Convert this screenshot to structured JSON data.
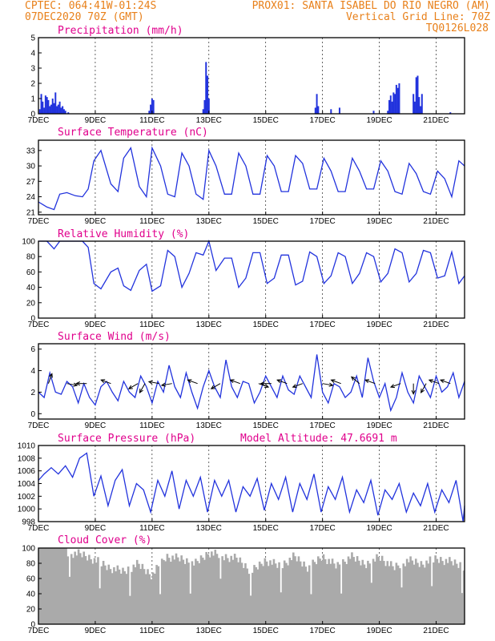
{
  "header": {
    "left_line1": "CPTEC:   064:41W-01:24S",
    "right_line1": "PROX01: SANTA ISABEL DO RIO NEGRO (AM)",
    "left_line2": "07DEC2020 70Z (GMT)",
    "right_line2": "Vertical Grid Line: 70Z",
    "right_line3": "TQ0126L028"
  },
  "colors": {
    "header": "#e8801a",
    "title": "#e0008c",
    "series": "#2233dd",
    "cloud": "#aaaaaa",
    "arrow": "#000000"
  },
  "chart_data": [
    {
      "type": "bar",
      "title": "Precipitation (mm/h)",
      "x_range_days": [
        7,
        22
      ],
      "ylim": [
        0,
        5
      ],
      "y_ticks": [
        0,
        1,
        2,
        3,
        4,
        5
      ],
      "x_tick_labels": [
        "7DEC",
        "9DEC",
        "11DEC",
        "13DEC",
        "15DEC",
        "17DEC",
        "19DEC",
        "21DEC"
      ],
      "x_tick_days": [
        7,
        9,
        11,
        13,
        15,
        17,
        19,
        21
      ],
      "x": [
        7.05,
        7.1,
        7.15,
        7.2,
        7.25,
        7.3,
        7.35,
        7.4,
        7.45,
        7.5,
        7.55,
        7.6,
        7.65,
        7.7,
        7.75,
        7.8,
        7.85,
        7.9,
        7.95,
        8.05,
        10.9,
        10.95,
        11.0,
        11.05,
        12.8,
        12.85,
        12.9,
        12.95,
        13.0,
        16.75,
        16.8,
        16.85,
        17.3,
        17.6,
        18.8,
        19.3,
        19.35,
        19.4,
        19.45,
        19.5,
        19.55,
        19.6,
        19.65,
        19.7,
        20.2,
        20.25,
        20.3,
        20.35,
        20.4,
        20.45,
        20.5,
        21.5
      ],
      "values": [
        0.3,
        1.3,
        0.8,
        0.4,
        1.2,
        1.1,
        0.9,
        0.5,
        0.6,
        1.0,
        0.7,
        1.4,
        0.5,
        0.6,
        0.8,
        0.4,
        0.5,
        0.3,
        0.2,
        0.1,
        0.2,
        0.6,
        1.0,
        0.9,
        0.3,
        0.9,
        3.4,
        2.5,
        1.0,
        0.4,
        1.3,
        0.5,
        0.3,
        0.4,
        0.2,
        0.2,
        0.9,
        1.2,
        0.8,
        1.4,
        1.3,
        1.9,
        1.7,
        2.0,
        1.3,
        0.8,
        2.4,
        2.5,
        1.1,
        0.5,
        1.3,
        0.1
      ]
    },
    {
      "type": "line",
      "title": "Surface Temperature (nC)",
      "x_range_days": [
        7,
        22
      ],
      "ylim": [
        20.5,
        35
      ],
      "y_ticks": [
        21,
        24,
        27,
        30,
        33
      ],
      "x_tick_labels": [
        "7DEC",
        "9DEC",
        "11DEC",
        "13DEC",
        "15DEC",
        "17DEC",
        "19DEC",
        "21DEC"
      ],
      "x_tick_days": [
        7,
        9,
        11,
        13,
        15,
        17,
        19,
        21
      ],
      "x": [
        7.0,
        7.3,
        7.55,
        7.75,
        8.0,
        8.3,
        8.55,
        8.75,
        8.95,
        9.2,
        9.55,
        9.8,
        10.0,
        10.25,
        10.55,
        10.8,
        11.0,
        11.3,
        11.55,
        11.8,
        12.05,
        12.3,
        12.55,
        12.8,
        13.0,
        13.25,
        13.55,
        13.8,
        14.05,
        14.3,
        14.55,
        14.8,
        15.05,
        15.3,
        15.55,
        15.8,
        16.05,
        16.3,
        16.55,
        16.8,
        17.05,
        17.3,
        17.55,
        17.8,
        18.05,
        18.3,
        18.55,
        18.8,
        19.05,
        19.3,
        19.55,
        19.8,
        20.05,
        20.3,
        20.55,
        20.8,
        21.05,
        21.3,
        21.55,
        21.8,
        22.0
      ],
      "values": [
        23.0,
        22.0,
        21.5,
        24.5,
        24.8,
        24.2,
        24.0,
        25.5,
        31.0,
        33.0,
        26.5,
        25.0,
        31.5,
        33.5,
        26.0,
        24.0,
        33.5,
        30.0,
        24.5,
        24.0,
        32.5,
        30.0,
        24.5,
        23.5,
        33.0,
        30.0,
        24.5,
        24.5,
        32.5,
        30.0,
        24.5,
        24.5,
        32.0,
        30.0,
        25.0,
        25.0,
        32.0,
        30.5,
        25.5,
        25.5,
        31.5,
        29.0,
        25.0,
        25.0,
        31.5,
        29.0,
        25.5,
        25.5,
        31.0,
        29.0,
        25.0,
        24.5,
        30.5,
        28.5,
        25.0,
        24.5,
        29.0,
        27.5,
        24.0,
        31.0,
        30.0
      ]
    },
    {
      "type": "line",
      "title": "Relative Humidity (%)",
      "x_range_days": [
        7,
        22
      ],
      "ylim": [
        0,
        100
      ],
      "y_ticks": [
        0,
        20,
        40,
        60,
        80,
        100
      ],
      "x_tick_labels": [
        "7DEC",
        "9DEC",
        "11DEC",
        "13DEC",
        "15DEC",
        "17DEC",
        "19DEC",
        "21DEC"
      ],
      "x_tick_days": [
        7,
        9,
        11,
        13,
        15,
        17,
        19,
        21
      ],
      "x": [
        7.0,
        7.3,
        7.55,
        7.75,
        8.0,
        8.3,
        8.55,
        8.75,
        8.95,
        9.2,
        9.55,
        9.8,
        10.0,
        10.25,
        10.55,
        10.8,
        11.0,
        11.3,
        11.55,
        11.8,
        12.05,
        12.3,
        12.55,
        12.8,
        13.0,
        13.25,
        13.55,
        13.8,
        14.05,
        14.3,
        14.55,
        14.8,
        15.05,
        15.3,
        15.55,
        15.8,
        16.05,
        16.3,
        16.55,
        16.8,
        17.05,
        17.3,
        17.55,
        17.8,
        18.05,
        18.3,
        18.55,
        18.8,
        19.05,
        19.3,
        19.55,
        19.8,
        20.05,
        20.3,
        20.55,
        20.8,
        21.05,
        21.3,
        21.55,
        21.8,
        22.0
      ],
      "values": [
        100,
        100,
        90,
        100,
        100,
        100,
        100,
        92,
        45,
        38,
        60,
        65,
        42,
        36,
        62,
        70,
        35,
        42,
        88,
        80,
        40,
        58,
        85,
        82,
        100,
        62,
        78,
        78,
        40,
        52,
        85,
        85,
        45,
        52,
        82,
        82,
        43,
        48,
        86,
        80,
        45,
        55,
        85,
        80,
        45,
        58,
        85,
        80,
        47,
        58,
        90,
        85,
        47,
        58,
        88,
        85,
        52,
        55,
        86,
        45,
        55
      ]
    },
    {
      "type": "line",
      "title": "Surface Wind (m/s)",
      "x_range_days": [
        7,
        22
      ],
      "ylim": [
        -0.5,
        6.5
      ],
      "y_ticks": [
        0,
        2,
        4,
        6
      ],
      "x_tick_labels": [
        "7DEC",
        "9DEC",
        "11DEC",
        "13DEC",
        "15DEC",
        "17DEC",
        "19DEC",
        "21DEC"
      ],
      "x_tick_days": [
        7,
        9,
        11,
        13,
        15,
        17,
        19,
        21
      ],
      "x": [
        7.0,
        7.2,
        7.4,
        7.6,
        7.8,
        8.0,
        8.2,
        8.4,
        8.6,
        8.8,
        9.0,
        9.2,
        9.4,
        9.6,
        9.8,
        10.0,
        10.2,
        10.4,
        10.6,
        10.8,
        11.0,
        11.2,
        11.4,
        11.6,
        11.8,
        12.0,
        12.2,
        12.4,
        12.6,
        12.8,
        13.0,
        13.2,
        13.4,
        13.6,
        13.8,
        14.0,
        14.2,
        14.4,
        14.6,
        14.8,
        15.0,
        15.2,
        15.4,
        15.6,
        15.8,
        16.0,
        16.2,
        16.4,
        16.6,
        16.8,
        17.0,
        17.2,
        17.4,
        17.6,
        17.8,
        18.0,
        18.2,
        18.4,
        18.6,
        18.8,
        19.0,
        19.2,
        19.4,
        19.6,
        19.8,
        20.0,
        20.2,
        20.4,
        20.6,
        20.8,
        21.0,
        21.2,
        21.4,
        21.6,
        21.8,
        22.0
      ],
      "values": [
        2.0,
        1.5,
        3.8,
        2.0,
        1.8,
        3.0,
        2.5,
        1.0,
        2.8,
        1.5,
        0.8,
        2.5,
        3.0,
        2.0,
        1.2,
        3.0,
        2.0,
        1.5,
        3.5,
        2.5,
        1.0,
        3.0,
        2.0,
        4.5,
        2.5,
        1.5,
        3.8,
        2.0,
        0.5,
        2.5,
        4.0,
        2.5,
        1.5,
        5.0,
        2.5,
        1.5,
        3.0,
        2.8,
        1.0,
        2.0,
        3.5,
        2.5,
        1.5,
        3.5,
        2.2,
        1.8,
        3.5,
        2.5,
        1.5,
        5.5,
        2.0,
        1.0,
        2.8,
        2.5,
        1.5,
        2.0,
        3.5,
        1.5,
        5.2,
        3.0,
        1.5,
        2.8,
        0.3,
        1.5,
        3.8,
        2.0,
        1.0,
        3.5,
        2.5,
        1.5,
        3.5,
        2.0,
        2.5,
        3.8,
        1.5,
        3.0
      ]
    },
    {
      "type": "line",
      "title": "Surface Pressure (hPa)",
      "annotation": "Model Altitude: 47.6691 m",
      "x_range_days": [
        7,
        22
      ],
      "ylim": [
        998,
        1010
      ],
      "y_ticks": [
        998,
        1000,
        1002,
        1004,
        1006,
        1008,
        1010
      ],
      "x_tick_labels": [
        "7DEC",
        "9DEC",
        "11DEC",
        "13DEC",
        "15DEC",
        "17DEC",
        "19DEC",
        "21DEC"
      ],
      "x_tick_days": [
        7,
        9,
        11,
        13,
        15,
        17,
        19,
        21
      ],
      "x": [
        7.0,
        7.2,
        7.45,
        7.7,
        7.95,
        8.2,
        8.45,
        8.7,
        8.95,
        9.2,
        9.45,
        9.7,
        9.95,
        10.2,
        10.45,
        10.7,
        10.95,
        11.2,
        11.45,
        11.7,
        11.95,
        12.2,
        12.45,
        12.7,
        12.95,
        13.2,
        13.45,
        13.7,
        13.95,
        14.2,
        14.45,
        14.7,
        14.95,
        15.2,
        15.45,
        15.7,
        15.95,
        16.2,
        16.45,
        16.7,
        16.95,
        17.2,
        17.45,
        17.7,
        17.95,
        18.2,
        18.45,
        18.7,
        18.95,
        19.2,
        19.45,
        19.7,
        19.95,
        20.2,
        20.45,
        20.7,
        20.95,
        21.2,
        21.45,
        21.7,
        21.95,
        22.0
      ],
      "values": [
        1004.5,
        1005.5,
        1006.5,
        1005.5,
        1006.8,
        1005.0,
        1008.0,
        1008.8,
        1002.0,
        1005.2,
        1000.5,
        1004.5,
        1006.2,
        1000.5,
        1004.0,
        1003.0,
        999.5,
        1004.5,
        1002.0,
        1006.0,
        1000.0,
        1004.5,
        1002.0,
        1005.0,
        999.5,
        1004.5,
        1002.0,
        1004.5,
        999.5,
        1003.5,
        1002.0,
        1004.8,
        999.8,
        1004.0,
        1001.5,
        1005.0,
        999.5,
        1004.0,
        1001.5,
        1005.5,
        999.5,
        1003.5,
        1001.5,
        1005.0,
        999.5,
        1003.0,
        1001.0,
        1004.5,
        999.0,
        1003.0,
        1001.5,
        1004.0,
        999.5,
        1002.5,
        1000.5,
        1004.0,
        999.5,
        1003.0,
        1001.0,
        1004.5,
        997.8,
        1000.5
      ]
    },
    {
      "type": "area",
      "title": "Cloud Cover (%)",
      "x_range_days": [
        7,
        22
      ],
      "ylim": [
        0,
        100
      ],
      "y_ticks": [
        0,
        20,
        40,
        60,
        80,
        100
      ],
      "x_tick_labels": [
        "7DEC",
        "9DEC",
        "11DEC",
        "13DEC",
        "15DEC",
        "17DEC",
        "19DEC",
        "21DEC"
      ],
      "x_tick_days": [
        7,
        9,
        11,
        13,
        15,
        17,
        19,
        21
      ],
      "x": [
        7.0,
        8.0,
        8.5,
        9.0,
        9.5,
        10.0,
        10.5,
        11.0,
        11.5,
        12.0,
        12.5,
        13.0,
        13.5,
        14.0,
        14.5,
        15.0,
        15.5,
        16.0,
        16.5,
        17.0,
        17.5,
        18.0,
        18.5,
        19.0,
        19.5,
        20.0,
        20.5,
        21.0,
        21.5,
        22.0
      ],
      "values": [
        100,
        100,
        98,
        90,
        80,
        75,
        85,
        70,
        95,
        92,
        85,
        100,
        95,
        92,
        75,
        90,
        82,
        95,
        80,
        95,
        82,
        95,
        85,
        95,
        80,
        90,
        85,
        92,
        88,
        82
      ]
    }
  ]
}
